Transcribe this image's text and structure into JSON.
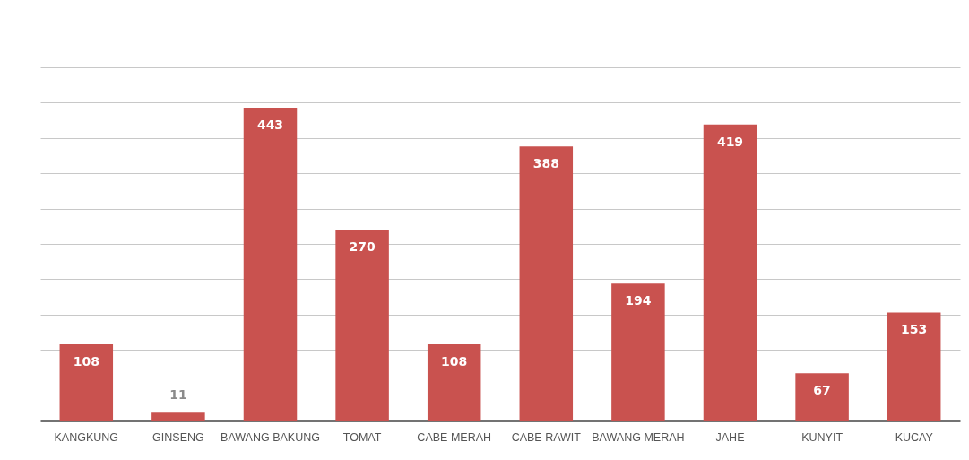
{
  "chart_data": {
    "type": "bar",
    "categories": [
      "KANGKUNG",
      "GINSENG",
      "BAWANG BAKUNG",
      "TOMAT",
      "CABE MERAH",
      "CABE RAWIT",
      "BAWANG MERAH",
      "JAHE",
      "KUNYIT",
      "KUCAY"
    ],
    "values": [
      108,
      11,
      443,
      270,
      108,
      388,
      194,
      419,
      67,
      153
    ],
    "color": "#c9524f",
    "data_labels": true,
    "grid": "y",
    "tick_labels": "x",
    "ylim": [
      0,
      500
    ]
  }
}
